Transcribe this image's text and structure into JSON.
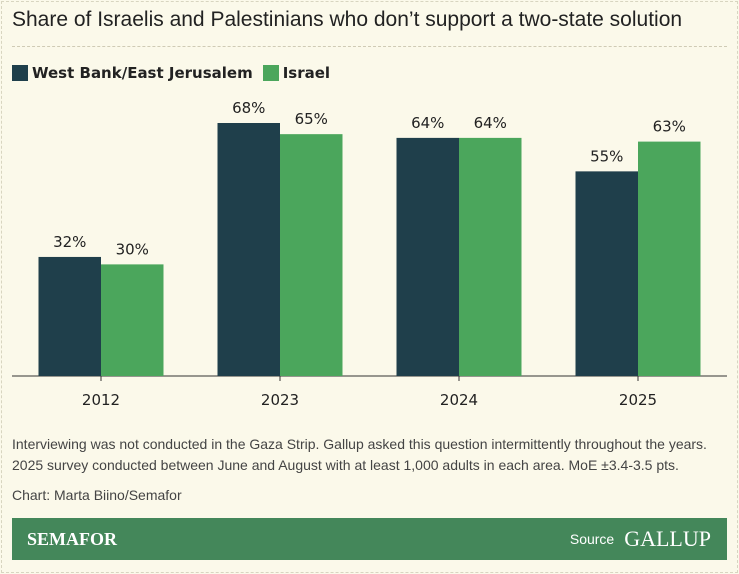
{
  "chart_data": {
    "type": "bar",
    "title": "Share of Israelis and Palestinians who don’t support a two-state solution",
    "categories": [
      "2012",
      "2023",
      "2024",
      "2025"
    ],
    "series": [
      {
        "name": "West Bank/East Jerusalem",
        "color": "#1f3f4b",
        "values": [
          32,
          68,
          64,
          55
        ],
        "labels": [
          "32%",
          "68%",
          "64%",
          "55%"
        ]
      },
      {
        "name": "Israel",
        "color": "#4ba65c",
        "values": [
          30,
          65,
          64,
          63
        ],
        "labels": [
          "30%",
          "65%",
          "64%",
          "63%"
        ]
      }
    ],
    "ylim": [
      0,
      80
    ],
    "grid": false,
    "legend": "top-left"
  },
  "notes": [
    "Interviewing was not conducted in the Gaza Strip. Gallup asked this question intermittently throughout the years.",
    "2025 survey conducted between June and August with at least 1,000 adults in each area. MoE ±3.4-3.5 pts."
  ],
  "credit": "Chart: Marta Biino/Semafor",
  "footer": {
    "logo": "SEMAFOR",
    "source_label": "Source",
    "source": "GALLUP",
    "color": "#44875a"
  }
}
